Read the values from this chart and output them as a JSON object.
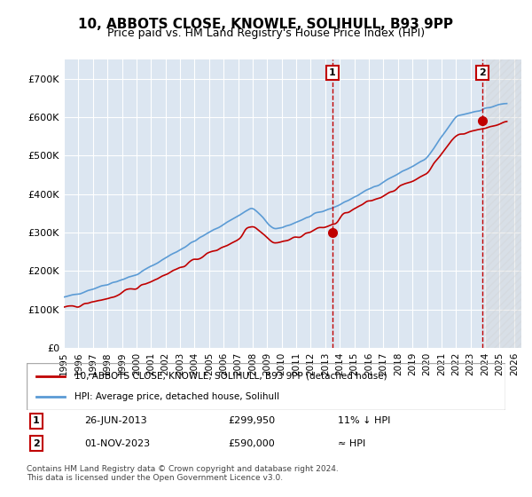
{
  "title": "10, ABBOTS CLOSE, KNOWLE, SOLIHULL, B93 9PP",
  "subtitle": "Price paid vs. HM Land Registry's House Price Index (HPI)",
  "ylabel": "",
  "xlim_start": 1995.0,
  "xlim_end": 2026.5,
  "ylim": [
    0,
    750000
  ],
  "yticks": [
    0,
    100000,
    200000,
    300000,
    400000,
    500000,
    600000,
    700000
  ],
  "ytick_labels": [
    "£0",
    "£100K",
    "£200K",
    "£300K",
    "£400K",
    "£500K",
    "£600K",
    "£700K"
  ],
  "hpi_color": "#5b9bd5",
  "price_color": "#c00000",
  "marker1_date": 2013.48,
  "marker1_price": 299950,
  "marker1_label": "1",
  "marker1_text": "26-JUN-2013",
  "marker1_value": "£299,950",
  "marker1_pct": "11% ↓ HPI",
  "marker2_date": 2023.83,
  "marker2_price": 590000,
  "marker2_label": "2",
  "marker2_text": "01-NOV-2023",
  "marker2_value": "£590,000",
  "marker2_pct": "≈ HPI",
  "legend_line1": "10, ABBOTS CLOSE, KNOWLE, SOLIHULL, B93 9PP (detached house)",
  "legend_line2": "HPI: Average price, detached house, Solihull",
  "footer": "Contains HM Land Registry data © Crown copyright and database right 2024.\nThis data is licensed under the Open Government Licence v3.0.",
  "bg_color": "#dce6f1",
  "hatch_color": "#c0c0c0",
  "grid_color": "#ffffff",
  "xticks": [
    1995,
    1996,
    1997,
    1998,
    1999,
    2000,
    2001,
    2002,
    2003,
    2004,
    2005,
    2006,
    2007,
    2008,
    2009,
    2010,
    2011,
    2012,
    2013,
    2014,
    2015,
    2016,
    2017,
    2018,
    2019,
    2020,
    2021,
    2022,
    2023,
    2024,
    2025,
    2026
  ]
}
